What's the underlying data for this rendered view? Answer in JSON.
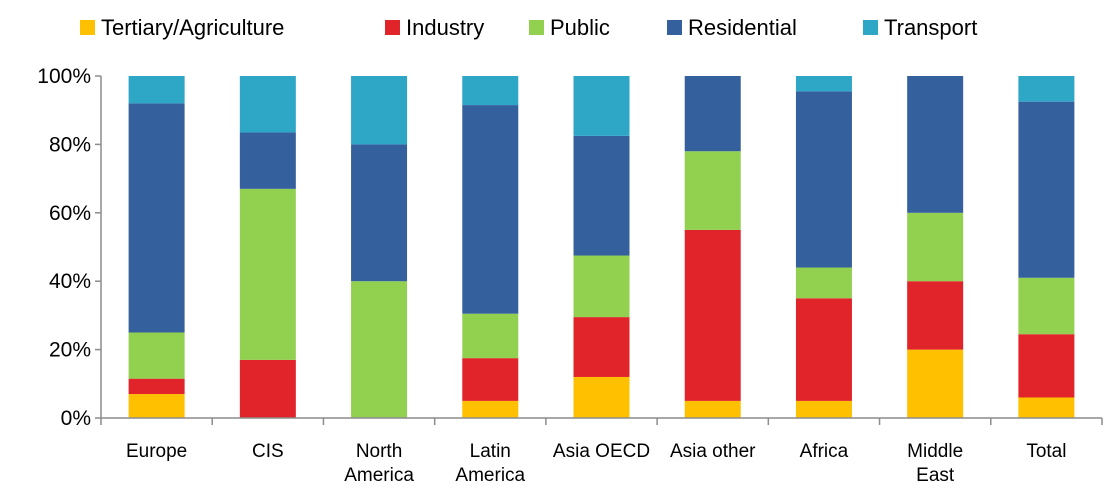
{
  "chart_data": {
    "type": "bar",
    "stacked": true,
    "percent": true,
    "categories": [
      [
        "Europe"
      ],
      [
        "CIS"
      ],
      [
        "North",
        "America"
      ],
      [
        "Latin",
        "America"
      ],
      [
        "Asia OECD"
      ],
      [
        "Asia other"
      ],
      [
        "Africa"
      ],
      [
        "Middle",
        "East"
      ],
      [
        "Total"
      ]
    ],
    "series": [
      {
        "name": "Tertiary/Agriculture",
        "color": "#FFC000",
        "values": [
          7,
          0,
          0,
          5,
          12,
          5,
          5,
          20,
          6
        ]
      },
      {
        "name": "Industry",
        "color": "#E1232A",
        "values": [
          4.5,
          17,
          0,
          12.5,
          17.5,
          50,
          30,
          20,
          18.5
        ]
      },
      {
        "name": "Public",
        "color": "#92D050",
        "values": [
          13.5,
          50,
          40,
          13,
          18,
          23,
          9,
          20,
          16.5
        ]
      },
      {
        "name": "Residential",
        "color": "#35609E",
        "values": [
          67,
          16.5,
          40,
          61,
          35,
          22,
          51.5,
          40,
          51.5
        ]
      },
      {
        "name": "Transport",
        "color": "#2EA6C6",
        "values": [
          8,
          16.5,
          20,
          8.5,
          17.5,
          0,
          4.5,
          0,
          7.5
        ]
      }
    ],
    "yticks": [
      "0%",
      "20%",
      "40%",
      "60%",
      "80%",
      "100%"
    ],
    "ylim": [
      0,
      100
    ],
    "grid": false,
    "legend_position": "top",
    "title": "",
    "xlabel": "",
    "ylabel": ""
  }
}
